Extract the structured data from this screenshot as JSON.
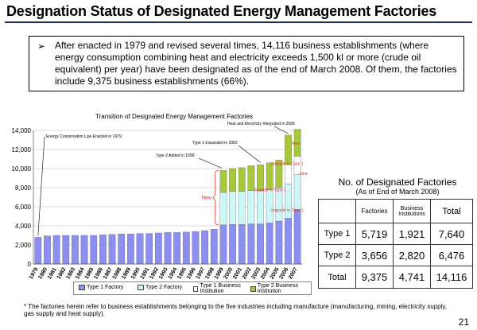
{
  "header": {
    "title": "Designation Status of Designated Energy Management Factories",
    "intro_bullet": "➢",
    "intro": "After enacted in 1979 and revised several times, 14,116 business establishments (where energy consumption combining heat and electricity exceeds 1,500 kl or more (crude oil equivalent) per year) have been designated as of the end of March 2008. Of them, the factories include 9,375 business establishments (66%)."
  },
  "chart_data": {
    "type": "bar",
    "stacked": true,
    "title": "Transition of Designated Energy Management Factories",
    "xlabel": "",
    "ylabel": "",
    "ylim": [
      0,
      14000
    ],
    "yticks": [
      "0",
      "2,000",
      "4,000",
      "6,000",
      "8,000",
      "10,000",
      "12,000",
      "14,000"
    ],
    "categories": [
      "1979",
      "1980",
      "1981",
      "1982",
      "1983",
      "1984",
      "1985",
      "1986",
      "1987",
      "1988",
      "1989",
      "1990",
      "1991",
      "1992",
      "1993",
      "1994",
      "1995",
      "1996",
      "1997",
      "1998",
      "1999",
      "2000",
      "2001",
      "2002",
      "2003",
      "2004",
      "2005",
      "2006",
      "2007"
    ],
    "series": [
      {
        "name": "Type 1 Factory",
        "color": "#8c8ff0",
        "values": [
          2800,
          2950,
          3000,
          3000,
          3000,
          3000,
          3000,
          3050,
          3100,
          3150,
          3150,
          3200,
          3200,
          3250,
          3300,
          3300,
          3350,
          3400,
          3500,
          3650,
          4100,
          4150,
          4150,
          4200,
          4200,
          4300,
          4500,
          4800,
          5719
        ]
      },
      {
        "name": "Type 2 Factory",
        "color": "#cdf6f9",
        "values": [
          0,
          0,
          0,
          0,
          0,
          0,
          0,
          0,
          0,
          0,
          0,
          0,
          0,
          0,
          0,
          0,
          0,
          0,
          0,
          0,
          3400,
          3450,
          3450,
          3500,
          3500,
          3500,
          3500,
          3600,
          3656
        ]
      },
      {
        "name": "Type 1 Business Institution",
        "color": "#ffffff",
        "values": [
          0,
          0,
          0,
          0,
          0,
          0,
          0,
          0,
          0,
          0,
          0,
          0,
          0,
          0,
          0,
          0,
          0,
          0,
          0,
          0,
          0,
          0,
          0,
          0,
          0,
          0,
          0,
          2000,
          1921
        ]
      },
      {
        "name": "Type 2 Business Institution",
        "color": "#a6c83a",
        "values": [
          0,
          0,
          0,
          0,
          0,
          0,
          0,
          0,
          0,
          0,
          0,
          0,
          0,
          0,
          0,
          0,
          0,
          0,
          0,
          0,
          2300,
          2400,
          2500,
          2600,
          2700,
          2800,
          2900,
          3100,
          2820
        ]
      }
    ],
    "annotations": [
      {
        "text": "Energy Conservation Law Enacted in 1979",
        "category": "1979"
      },
      {
        "text": "Type 2 Added in 1999",
        "category": "1999"
      },
      {
        "text": "Type 1 Expanded in 2003",
        "category": "2003"
      },
      {
        "text": "Heat and Electricity Integrated in 2006",
        "category": "2006"
      },
      {
        "text": "New",
        "category": "1999"
      },
      {
        "text": "New",
        "category": "2006"
      },
      {
        "text": "New",
        "category": "2007"
      },
      {
        "text": "Upgrade to Type 1",
        "category": "2006"
      },
      {
        "text": "Upgrade to Type 1",
        "category": "2005"
      },
      {
        "text": "Upgrade to Type 1",
        "category": "2006"
      }
    ],
    "legend": "bottom"
  },
  "table": {
    "title": "No. of Designated Factories",
    "subtitle": "(As of End of March 2008)",
    "columns": [
      "",
      "Factories",
      "Business Institutions",
      "Total"
    ],
    "rows": [
      {
        "label": "Type 1",
        "factories": "5,719",
        "institutions": "1,921",
        "total": "7,640"
      },
      {
        "label": "Type 2",
        "factories": "3,656",
        "institutions": "2,820",
        "total": "6,476"
      },
      {
        "label": "Total",
        "factories": "9,375",
        "institutions": "4,741",
        "total": "14,116"
      }
    ]
  },
  "footnote": "* The factories herein refer to business establishments belonging to the five industries including manufacture (manufacturing, mining, electricity supply, gas supply and heat supply).",
  "page_number": "21"
}
